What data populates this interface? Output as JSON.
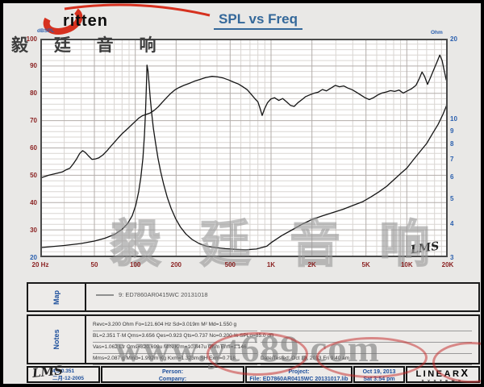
{
  "header": {
    "logo_text": "ritten",
    "logo_cn": "毅 廷 音 响",
    "title": "SPL vs Freq"
  },
  "axes_labels": {
    "left": "dBSPL",
    "right": "Ohm"
  },
  "chart_data": {
    "type": "line",
    "title": "SPL vs Freq",
    "x_axis": {
      "label": "Hz",
      "scale": "log",
      "min": 20,
      "max": 20000,
      "ticks": [
        {
          "f": 20,
          "label": "20 Hz"
        },
        {
          "f": 50,
          "label": "50"
        },
        {
          "f": 100,
          "label": "100"
        },
        {
          "f": 200,
          "label": "200"
        },
        {
          "f": 500,
          "label": "500"
        },
        {
          "f": 1000,
          "label": "1K"
        },
        {
          "f": 2000,
          "label": "2K"
        },
        {
          "f": 5000,
          "label": "5K"
        },
        {
          "f": 10000,
          "label": "10K"
        },
        {
          "f": 20000,
          "label": "20K"
        }
      ],
      "grid_major_hz": [
        50,
        100,
        200,
        500,
        1000,
        2000,
        5000,
        10000
      ],
      "grid_minor_hz": [
        30,
        40,
        60,
        70,
        80,
        90,
        300,
        400,
        600,
        700,
        800,
        900,
        3000,
        4000,
        6000,
        7000,
        8000,
        9000,
        12000,
        14000,
        16000,
        18000
      ]
    },
    "y_left": {
      "label": "dBSPL",
      "min": 20,
      "max": 100,
      "ticks": [
        100,
        90,
        80,
        70,
        60,
        50,
        40,
        30,
        20
      ]
    },
    "y_right": {
      "label": "Ohm",
      "scale": "log",
      "min": 3,
      "max": 20,
      "ticks": [
        20,
        10,
        9,
        8,
        7,
        6,
        5,
        4,
        3
      ]
    },
    "series": [
      {
        "name": "SPL",
        "axis": "left",
        "color": "#151515",
        "points": [
          [
            20,
            49
          ],
          [
            23,
            50
          ],
          [
            26,
            50.6
          ],
          [
            29,
            51.2
          ],
          [
            31,
            52
          ],
          [
            33,
            52.6
          ],
          [
            35,
            54.2
          ],
          [
            37,
            56
          ],
          [
            39,
            58
          ],
          [
            41,
            59
          ],
          [
            43,
            58.3
          ],
          [
            45,
            57.2
          ],
          [
            48,
            55.8
          ],
          [
            51,
            56
          ],
          [
            54,
            56.4
          ],
          [
            58,
            57.5
          ],
          [
            62,
            59
          ],
          [
            66,
            60.6
          ],
          [
            70,
            62
          ],
          [
            75,
            63.7
          ],
          [
            80,
            65.2
          ],
          [
            86,
            66.6
          ],
          [
            92,
            68
          ],
          [
            99,
            69.5
          ],
          [
            106,
            70.9
          ],
          [
            113,
            71.8
          ],
          [
            121,
            72.3
          ],
          [
            129,
            72.8
          ],
          [
            138,
            73.8
          ],
          [
            148,
            75.1
          ],
          [
            158,
            76.7
          ],
          [
            170,
            78.4
          ],
          [
            182,
            79.9
          ],
          [
            195,
            81.2
          ],
          [
            210,
            82.1
          ],
          [
            228,
            82.9
          ],
          [
            248,
            83.6
          ],
          [
            272,
            84.4
          ],
          [
            300,
            85.1
          ],
          [
            332,
            85.8
          ],
          [
            368,
            86.2
          ],
          [
            405,
            86
          ],
          [
            445,
            85.6
          ],
          [
            488,
            84.9
          ],
          [
            530,
            84.1
          ],
          [
            575,
            83.4
          ],
          [
            620,
            82.4
          ],
          [
            668,
            81.3
          ],
          [
            715,
            79.6
          ],
          [
            762,
            78
          ],
          [
            800,
            76.9
          ],
          [
            830,
            74.5
          ],
          [
            860,
            71.9
          ],
          [
            895,
            74.3
          ],
          [
            940,
            76.5
          ],
          [
            995,
            77.9
          ],
          [
            1060,
            78.4
          ],
          [
            1140,
            77.4
          ],
          [
            1220,
            78.1
          ],
          [
            1300,
            76.9
          ],
          [
            1390,
            75.6
          ],
          [
            1480,
            75.2
          ],
          [
            1580,
            76.6
          ],
          [
            1690,
            77.7
          ],
          [
            1800,
            78.8
          ],
          [
            1920,
            79.4
          ],
          [
            2060,
            80
          ],
          [
            2220,
            80.4
          ],
          [
            2390,
            81.4
          ],
          [
            2560,
            80.9
          ],
          [
            2760,
            81.9
          ],
          [
            2970,
            82.9
          ],
          [
            3190,
            82.4
          ],
          [
            3430,
            82.7
          ],
          [
            3690,
            81.9
          ],
          [
            3960,
            81.3
          ],
          [
            4260,
            80.4
          ],
          [
            4580,
            79.4
          ],
          [
            4920,
            78.4
          ],
          [
            5290,
            77.7
          ],
          [
            5680,
            78.4
          ],
          [
            6110,
            79.4
          ],
          [
            6560,
            80.1
          ],
          [
            7050,
            80.5
          ],
          [
            7580,
            81
          ],
          [
            8140,
            80.7
          ],
          [
            8750,
            81.2
          ],
          [
            9400,
            80.1
          ],
          [
            10100,
            80.9
          ],
          [
            10850,
            81.7
          ],
          [
            11660,
            82.9
          ],
          [
            12300,
            85.2
          ],
          [
            12950,
            87.8
          ],
          [
            13500,
            86.2
          ],
          [
            14200,
            83.3
          ],
          [
            15000,
            86
          ],
          [
            15900,
            89
          ],
          [
            16700,
            91.5
          ],
          [
            17500,
            94
          ],
          [
            18200,
            92
          ],
          [
            18900,
            88
          ],
          [
            19500,
            85
          ],
          [
            20000,
            83.9
          ]
        ]
      },
      {
        "name": "Impedance",
        "axis": "right",
        "color": "#151515",
        "points": [
          [
            20,
            3.26
          ],
          [
            30,
            3.32
          ],
          [
            40,
            3.38
          ],
          [
            50,
            3.45
          ],
          [
            60,
            3.54
          ],
          [
            70,
            3.65
          ],
          [
            80,
            3.82
          ],
          [
            88,
            4.02
          ],
          [
            95,
            4.3
          ],
          [
            101,
            4.72
          ],
          [
            106,
            5.3
          ],
          [
            110,
            6
          ],
          [
            114,
            7.1
          ],
          [
            117,
            8.7
          ],
          [
            119,
            10.6
          ],
          [
            121,
            13.6
          ],
          [
            122,
            15.9
          ],
          [
            124,
            15.2
          ],
          [
            126,
            13.8
          ],
          [
            129,
            11.9
          ],
          [
            132,
            10.5
          ],
          [
            136,
            9.2
          ],
          [
            141,
            8.1
          ],
          [
            147,
            7.1
          ],
          [
            154,
            6.3
          ],
          [
            162,
            5.65
          ],
          [
            172,
            5.05
          ],
          [
            184,
            4.58
          ],
          [
            198,
            4.2
          ],
          [
            215,
            3.9
          ],
          [
            236,
            3.67
          ],
          [
            262,
            3.5
          ],
          [
            295,
            3.38
          ],
          [
            335,
            3.3
          ],
          [
            390,
            3.26
          ],
          [
            460,
            3.23
          ],
          [
            550,
            3.21
          ],
          [
            650,
            3.2
          ],
          [
            780,
            3.22
          ],
          [
            930,
            3.3
          ],
          [
            1000,
            3.4
          ],
          [
            1200,
            3.62
          ],
          [
            1450,
            3.82
          ],
          [
            1700,
            4
          ],
          [
            2000,
            4.16
          ],
          [
            2400,
            4.3
          ],
          [
            2900,
            4.43
          ],
          [
            3400,
            4.55
          ],
          [
            4000,
            4.7
          ],
          [
            4700,
            4.85
          ],
          [
            5400,
            5.05
          ],
          [
            6200,
            5.28
          ],
          [
            7100,
            5.55
          ],
          [
            8100,
            5.9
          ],
          [
            9000,
            6.2
          ],
          [
            10000,
            6.5
          ],
          [
            11200,
            7
          ],
          [
            12500,
            7.5
          ],
          [
            14000,
            8.05
          ],
          [
            15500,
            8.8
          ],
          [
            17000,
            9.5
          ],
          [
            18500,
            10.4
          ],
          [
            19500,
            11.1
          ],
          [
            20000,
            11.6
          ]
        ]
      }
    ]
  },
  "plot_logo": "LMS",
  "map": {
    "label": "Map",
    "legend": "9: ED7860AR0415WC  20131018"
  },
  "notes": {
    "label": "Notes",
    "left_lines": [
      "Revc=3.200 Ohm  Fo=121.604 Hz  Sd=3.019m M²  Md=1.550 g",
      "BL=2.351 T·M  Qms=3.656  Qes=0.923  Qts=0.737  No=0.200 %  SPLo=85.0 dB",
      "Vas=1.062 Ltr  Cms=820.699u M/N  Krm=10.847u Ohm  Erm=1.146",
      "Mms=2.087 g  Mmd=1.992m Kg  Kxm=1.323m SH  Exm=0.718"
    ],
    "right_lines": [
      "",
      "",
      "",
      "Date/Tested:  Oct 18, 2013  Fri 9:40 am"
    ]
  },
  "footer": {
    "lms": "LMS",
    "version": "4.5.0.351",
    "version_date": "二月-12-2005",
    "person": "Person:",
    "company": "Company:",
    "project": "Project:",
    "file": "File: ED7860AR0415WC  20131017.lib",
    "date": "Oct 19, 2013",
    "time": "Sat 3:54 pm",
    "brand_main": "LINEAR",
    "brand_x": "X",
    "brand_sub": "SYSTEMS"
  },
  "watermarks": {
    "plot": "毅 廷 音 响",
    "site": "www.yt689.com"
  },
  "colors": {
    "title": "#34689a",
    "tick_maroon": "#8b2323",
    "tick_blue": "#2a5fae",
    "curve": "#151515",
    "grid_minor": "#d9d5d2",
    "grid_major": "#b3adaa",
    "logo_red": "#d6311f",
    "plot_border": "#4a4a4a"
  }
}
